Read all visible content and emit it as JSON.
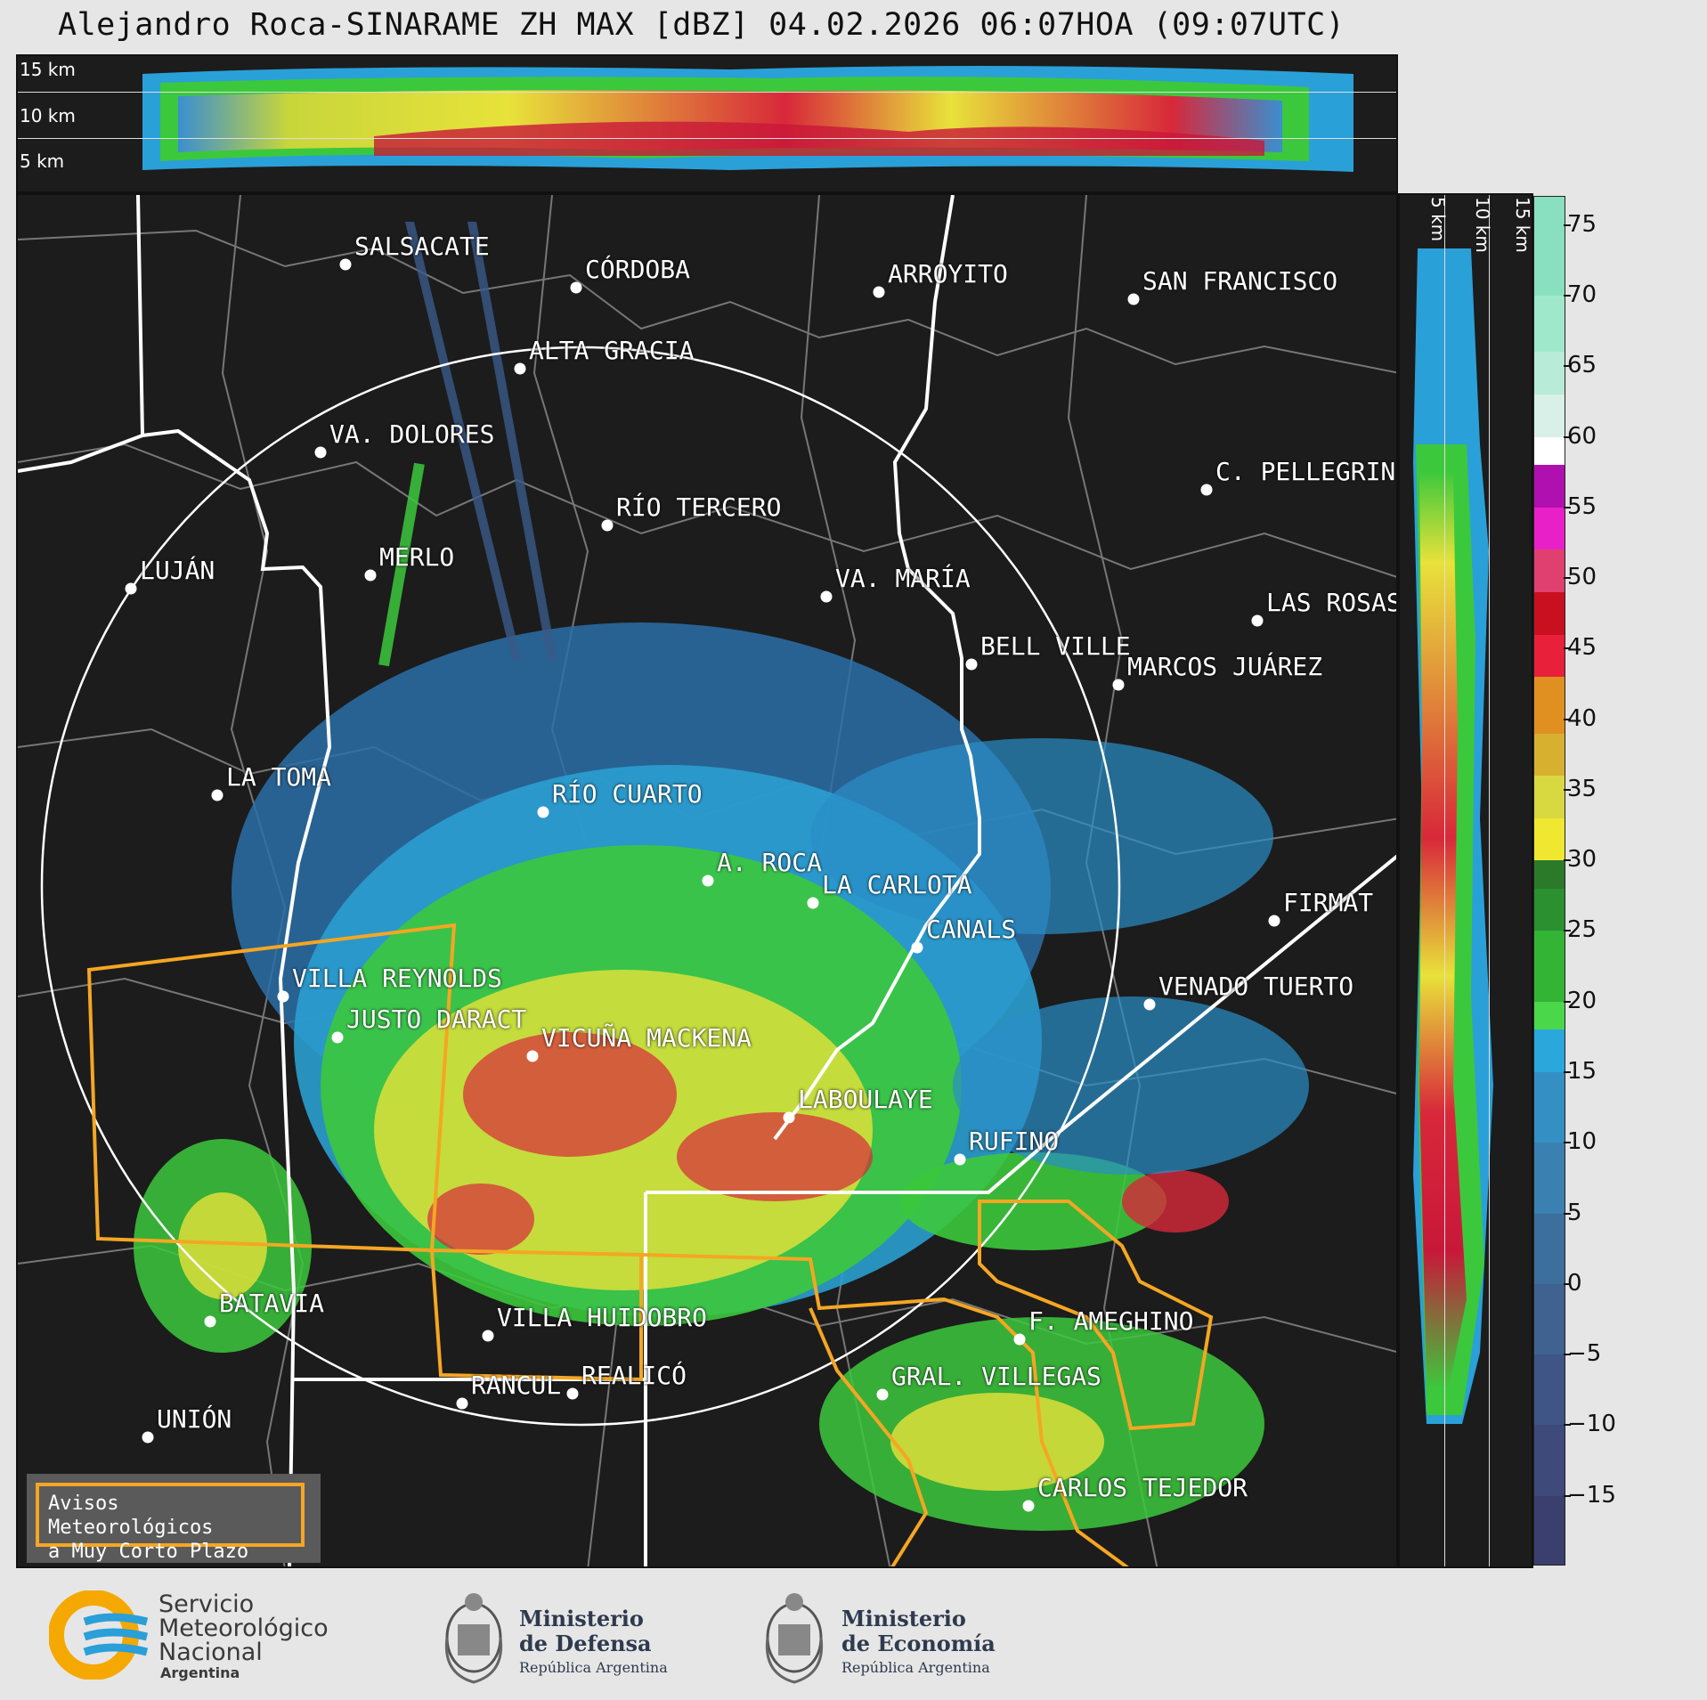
{
  "title": "Alejandro Roca-SINARAME ZH MAX [dBZ] 04.02.2026 06:07HOA (09:07UTC)",
  "altitude_labels": [
    "15 km",
    "10 km",
    "5 km"
  ],
  "side_altitude_labels": [
    "5 km",
    "10 km",
    "15 km"
  ],
  "cities": [
    {
      "name": "SALSACATE"
    },
    {
      "name": "CÓRDOBA"
    },
    {
      "name": "ARROYITO"
    },
    {
      "name": "SAN FRANCISCO"
    },
    {
      "name": "ALTA GRACIA"
    },
    {
      "name": "VA. DOLORES"
    },
    {
      "name": "RÍO TERCERO"
    },
    {
      "name": "C. PELLEGRINI"
    },
    {
      "name": "LUJÁN"
    },
    {
      "name": "MERLO"
    },
    {
      "name": "VA. MARÍA"
    },
    {
      "name": "LAS ROSAS"
    },
    {
      "name": "BELL VILLE"
    },
    {
      "name": "MARCOS JUÁREZ"
    },
    {
      "name": "LA TOMA"
    },
    {
      "name": "RÍO CUARTO"
    },
    {
      "name": "A. ROCA"
    },
    {
      "name": "LA CARLOTA"
    },
    {
      "name": "FIRMAT"
    },
    {
      "name": "CANALS"
    },
    {
      "name": "VILLA REYNOLDS"
    },
    {
      "name": "VENADO TUERTO"
    },
    {
      "name": "JUSTO DARACT"
    },
    {
      "name": "VICUÑA MACKENA"
    },
    {
      "name": "LABOULAYE"
    },
    {
      "name": "RUFINO"
    },
    {
      "name": "BATAVIA"
    },
    {
      "name": "VILLA HUIDOBRO"
    },
    {
      "name": "F. AMEGHINO"
    },
    {
      "name": "RANCUL"
    },
    {
      "name": "REALICÓ"
    },
    {
      "name": "GRAL. VILLEGAS"
    },
    {
      "name": "UNIÓN"
    },
    {
      "name": "CARLOS TEJEDOR"
    }
  ],
  "colorbar": {
    "ticks": [
      "75",
      "70",
      "65",
      "60",
      "55",
      "50",
      "45",
      "40",
      "35",
      "30",
      "25",
      "20",
      "15",
      "10",
      "5",
      "0",
      "−5",
      "−10",
      "−15"
    ],
    "min": -20,
    "max": 77
  },
  "legend": {
    "line1": "Avisos Meteorológicos",
    "line2": "a Muy Corto Plazo"
  },
  "logos": {
    "smn_line1": "Servicio",
    "smn_line2": "Meteorológico",
    "smn_line3": "Nacional",
    "smn_line4": "Argentina",
    "defensa_line1": "Ministerio",
    "defensa_line2": "de Defensa",
    "defensa_sub": "República Argentina",
    "economia_line1": "Ministerio",
    "economia_line2": "de Economía",
    "economia_sub": "República Argentina"
  },
  "colors": {
    "warning_polygon": "#f5a623",
    "border_province": "#ffffff",
    "border_department": "#777777",
    "background": "#1c1c1c"
  }
}
